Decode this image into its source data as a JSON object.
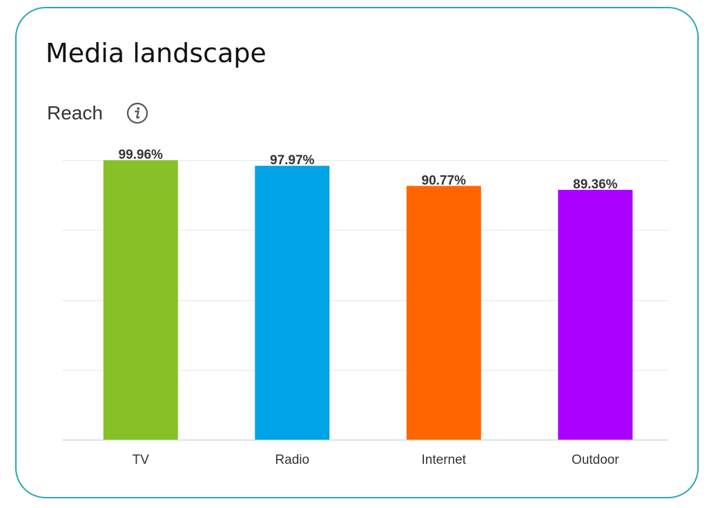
{
  "header": {
    "title": "Media landscape",
    "subtitle": "Reach",
    "info_icon": "info-icon"
  },
  "colors": {
    "border": "#26a9b3",
    "grid": "#e3ecef",
    "axis": "#d5e3e8"
  },
  "chart_data": {
    "type": "bar",
    "title": "",
    "xlabel": "",
    "ylabel": "",
    "ylim": [
      0,
      100
    ],
    "grid": true,
    "legend": "none",
    "categories": [
      "TV",
      "Radio",
      "Internet",
      "Outdoor"
    ],
    "values": [
      99.96,
      97.97,
      90.77,
      89.36
    ],
    "data_labels": [
      "99.96%",
      "97.97%",
      "90.77%",
      "89.36%"
    ],
    "colors": [
      "#86c128",
      "#00a3e6",
      "#ff6600",
      "#aa00ff"
    ]
  }
}
